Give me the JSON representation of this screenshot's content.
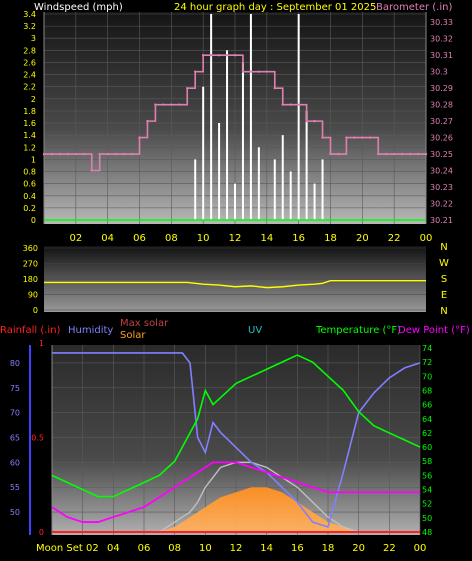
{
  "header": {
    "left": "Windspeed (mph)",
    "center": "24 hour graph day : September 01 2025",
    "right": "Barometer (.in)"
  },
  "colors": {
    "background": "#000000",
    "windspeed": "#ffffff",
    "gust": "#d8d8d8",
    "barometer": "#e080b0",
    "wind_direction": "#ffff00",
    "humidity": "#8080ff",
    "temperature": "#00ff00",
    "dew_point": "#ff00ff",
    "uv": "#20c0c0",
    "solar": "#ffa020",
    "max_solar": "#c0c0c0",
    "rainfall": "#ff2020",
    "scale_text": "#ffff00"
  },
  "chart_data": [
    {
      "type": "line",
      "panel": "wind_barometer",
      "x": [
        0,
        0.5,
        1,
        1.5,
        2,
        2.5,
        3,
        3.5,
        4,
        4.5,
        5,
        5.5,
        6,
        6.5,
        7,
        7.5,
        8,
        8.5,
        9,
        9.5,
        10,
        10.5,
        11,
        11.5,
        12,
        12.5,
        13,
        13.5,
        14,
        14.5,
        15,
        15.5,
        16,
        16.5,
        17,
        17.5,
        18,
        18.5,
        19,
        19.5,
        20,
        20.5,
        21,
        21.5,
        22,
        22.5,
        23,
        23.5,
        24
      ],
      "xticks": [
        "02",
        "04",
        "06",
        "08",
        "10",
        "12",
        "14",
        "16",
        "18",
        "20",
        "22",
        "00"
      ],
      "left_axis": {
        "label": "Windspeed (mph)",
        "ylim": [
          0,
          3.4
        ],
        "ticks": [
          "0",
          "0.2",
          "0.4",
          "0.6",
          "0.8",
          "1",
          "1.2",
          "1.4",
          "1.6",
          "1.8",
          "2",
          "2.2",
          "2.4",
          "2.6",
          "2.8",
          "3",
          "3.2",
          "3.4"
        ]
      },
      "right_axis": {
        "label": "Barometer (.in)",
        "ylim": [
          30.21,
          30.335
        ],
        "ticks": [
          "30.21",
          "30.22",
          "30.23",
          "30.24",
          "30.25",
          "30.26",
          "30.27",
          "30.28",
          "30.29",
          "30.3",
          "30.31",
          "30.32",
          "30.33"
        ]
      },
      "series": [
        {
          "name": "Barometer (.in)",
          "axis": "right",
          "values": [
            30.25,
            30.25,
            30.25,
            30.25,
            30.25,
            30.25,
            30.24,
            30.25,
            30.25,
            30.25,
            30.25,
            30.25,
            30.26,
            30.27,
            30.28,
            30.28,
            30.28,
            30.28,
            30.29,
            30.3,
            30.31,
            30.31,
            30.31,
            30.31,
            30.31,
            30.3,
            30.3,
            30.3,
            30.3,
            30.29,
            30.28,
            30.28,
            30.28,
            30.27,
            30.27,
            30.26,
            30.25,
            30.25,
            30.26,
            30.26,
            30.26,
            30.26,
            30.25,
            30.25,
            30.25,
            30.25,
            30.25,
            30.25,
            30.25
          ]
        },
        {
          "name": "Windspeed (mph)",
          "axis": "left",
          "values": [
            0,
            0,
            0,
            0,
            0,
            0,
            0,
            0,
            0,
            0,
            0,
            0,
            0,
            0,
            0,
            0,
            0,
            0,
            0,
            1.0,
            2.2,
            3.4,
            1.6,
            2.8,
            0.6,
            2.6,
            3.4,
            1.2,
            0,
            1.0,
            1.4,
            0.8,
            3.4,
            1.8,
            0.6,
            1.0,
            0,
            0,
            0,
            0,
            0,
            0,
            0,
            0,
            0,
            0,
            0,
            0,
            0
          ]
        }
      ]
    },
    {
      "type": "line",
      "panel": "wind_direction",
      "x": [
        0,
        2,
        4,
        6,
        8,
        9,
        10,
        11,
        12,
        13,
        14,
        15,
        16,
        17,
        17.5,
        18,
        20,
        22,
        24
      ],
      "left_axis": {
        "ylim": [
          0,
          360
        ],
        "ticks": [
          "0",
          "90",
          "180",
          "270",
          "360"
        ]
      },
      "right_labels": [
        "N",
        "W",
        "S",
        "E",
        "N"
      ],
      "series": [
        {
          "name": "Wind direction",
          "values": [
            160,
            160,
            160,
            160,
            160,
            160,
            150,
            145,
            135,
            140,
            130,
            135,
            145,
            150,
            155,
            170,
            170,
            170,
            170
          ]
        }
      ]
    },
    {
      "type": "line",
      "panel": "temperature_humidity",
      "x": [
        0,
        1,
        2,
        3,
        4,
        5,
        6,
        7,
        8,
        8.5,
        9,
        9.5,
        10,
        10.5,
        11,
        12,
        13,
        14,
        15,
        16,
        17,
        18,
        19,
        20,
        21,
        22,
        23,
        24
      ],
      "labels": {
        "rainfall": "Rainfall (.in)",
        "humidity": "Humidity",
        "max_solar": "Max solar",
        "solar": "Solar",
        "uv": "UV",
        "temperature": "Temperature (°F)",
        "dew_point": "Dew Point (°F)"
      },
      "left_axis": {
        "ylim": [
          46,
          83
        ],
        "ticks": [
          "50",
          "55",
          "60",
          "65",
          "70",
          "75",
          "80"
        ]
      },
      "rain_axis": {
        "ylim": [
          0,
          1
        ],
        "ticks": [
          "0",
          "0.5",
          "1"
        ]
      },
      "right_axis": {
        "ylim": [
          48,
          74
        ],
        "ticks": [
          "48",
          "50",
          "52",
          "54",
          "56",
          "58",
          "60",
          "62",
          "64",
          "66",
          "68",
          "70",
          "72",
          "74"
        ]
      },
      "series": [
        {
          "name": "Humidity",
          "axis": "left",
          "values": [
            82,
            82,
            82,
            82,
            82,
            82,
            82,
            82,
            82,
            82,
            80,
            65,
            62,
            68,
            66,
            63,
            60,
            58,
            55,
            52,
            48,
            47,
            58,
            70,
            74,
            77,
            79,
            80
          ]
        },
        {
          "name": "Temperature (°F)",
          "axis": "right",
          "values": [
            56,
            55,
            54,
            53,
            53,
            54,
            55,
            56,
            58,
            60,
            62,
            64,
            68,
            66,
            67,
            69,
            70,
            71,
            72,
            73,
            72,
            70,
            68,
            65,
            63,
            62,
            61,
            60
          ]
        },
        {
          "name": "Dew Point (°F)",
          "axis": "left",
          "values": [
            51,
            49,
            48,
            48,
            49,
            50,
            51,
            53,
            55,
            56,
            57,
            58,
            59,
            60,
            60,
            60,
            59,
            58,
            57,
            56,
            55,
            54,
            54,
            54,
            54,
            54,
            54,
            54
          ]
        },
        {
          "name": "Max solar",
          "axis": "left",
          "values": [
            46,
            46,
            46,
            46,
            46,
            46,
            46,
            46,
            48,
            49,
            50,
            52,
            55,
            57,
            59,
            60,
            60,
            59,
            57,
            55,
            52,
            49,
            47,
            46,
            46,
            46,
            46,
            46
          ]
        },
        {
          "name": "Solar",
          "axis": "left",
          "values": [
            46,
            46,
            46,
            46,
            46,
            46,
            46,
            46,
            47,
            48,
            49,
            50,
            51,
            52,
            53,
            54,
            55,
            55,
            54,
            52,
            50,
            48,
            47,
            46,
            46,
            46,
            46,
            46
          ]
        }
      ],
      "bottom_label": "Moon Set 02"
    }
  ]
}
